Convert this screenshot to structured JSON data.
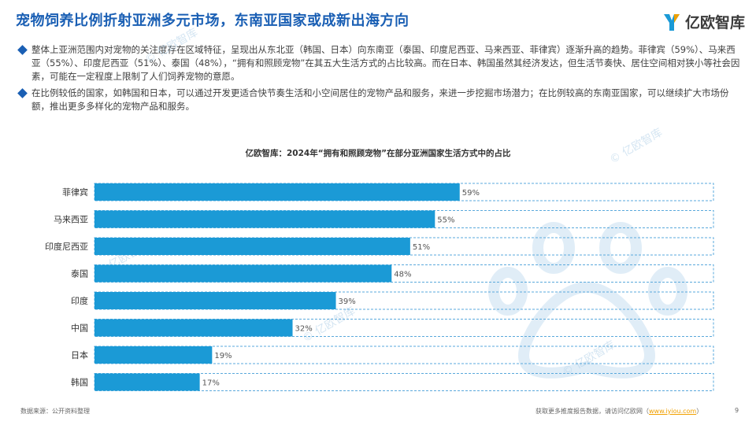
{
  "header": {
    "title": "宠物饲养比例折射亚洲多元市场，东南亚国家或成新出海方向",
    "logo_text": "亿欧智库"
  },
  "bullets": [
    "整体上亚洲范围内对宠物的关注度存在区域特征，呈现出从东北亚（韩国、日本）向东南亚（泰国、印度尼西亚、马来西亚、菲律宾）逐渐升高的趋势。菲律宾（59%）、马来西亚（55%）、印度尼西亚（51%）、泰国（48%），“拥有和照顾宠物”在其五大生活方式的占比较高。而在日本、韩国虽然其经济发达，但生活节奏快、居住空间相对狭小等社会因素，可能在一定程度上限制了人们饲养宠物的意愿。",
    "在比例较低的国家，如韩国和日本，可以通过开发更适合快节奏生活和小空间居住的宠物产品和服务，来进一步挖掘市场潜力；在比例较高的东南亚国家，可以继续扩大市场份额，推出更多多样化的宠物产品和服务。"
  ],
  "chart_data": {
    "type": "bar",
    "orientation": "horizontal",
    "title": "亿欧智库：2024年“拥有和照顾宠物”在部分亚洲国家生活方式中的占比",
    "categories": [
      "菲律宾",
      "马来西亚",
      "印度尼西亚",
      "泰国",
      "印度",
      "中国",
      "日本",
      "韩国"
    ],
    "values": [
      59,
      55,
      51,
      48,
      39,
      32,
      19,
      17
    ],
    "labels": [
      "59%",
      "55%",
      "51%",
      "48%",
      "39%",
      "32%",
      "19%",
      "17%"
    ],
    "xlim": [
      0,
      100
    ],
    "bar_color": "#1b9ad6",
    "track_border_color": "#5aa9dc"
  },
  "watermark": "© 亿欧智库",
  "footer": {
    "source": "数据来源：公开资料整理",
    "more_text": "获取更多推度报告数据，请访问亿欧网（",
    "link": "www.iyiou.com",
    "close": "）",
    "page": "9"
  }
}
